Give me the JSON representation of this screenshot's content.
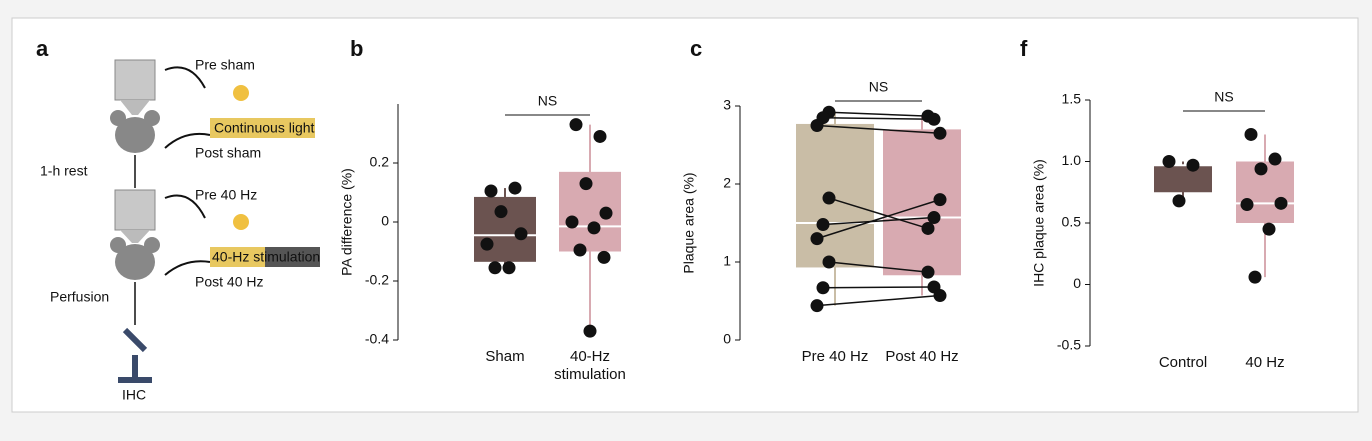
{
  "diagram": {
    "label": "a",
    "pre_sham": "Pre sham",
    "continuous": "Continuous light",
    "post_sham": "Post sham",
    "rest": "1-h rest",
    "pre_40": "Pre 40 Hz",
    "stim": "40-Hz stimulation",
    "post_40": "Post 40 Hz",
    "perfusion": "Perfusion",
    "ihc": "IHC"
  },
  "chart_data": [
    {
      "type": "box",
      "panel": "b",
      "ylabel": "PA difference (%)",
      "annotation": "NS",
      "categories": [
        "Sham",
        "40-Hz stimulation"
      ],
      "ylim": [
        -0.4,
        0.4
      ],
      "yticks": [
        -0.4,
        -0.2,
        0,
        0.2
      ],
      "boxes": [
        {
          "color": "#6b5350",
          "q1": -0.135,
          "median": -0.045,
          "q3": 0.085,
          "whisker_low": -0.155,
          "whisker_high": 0.115,
          "points": [
            0.105,
            0.115,
            0.035,
            -0.04,
            -0.075,
            -0.155,
            -0.155
          ]
        },
        {
          "color": "#d8aab1",
          "q1": -0.1,
          "median": -0.015,
          "q3": 0.17,
          "whisker_low": -0.37,
          "whisker_high": 0.33,
          "points": [
            0.33,
            0.29,
            0.13,
            0.03,
            0.0,
            -0.02,
            -0.095,
            -0.12,
            -0.37
          ]
        }
      ]
    },
    {
      "type": "paired-box",
      "panel": "c",
      "ylabel": "Plaque area (%)",
      "annotation": "NS",
      "categories": [
        "Pre 40 Hz",
        "Post 40 Hz"
      ],
      "ylim": [
        0,
        3
      ],
      "yticks": [
        0,
        1,
        2,
        3
      ],
      "boxes": [
        {
          "color": "#c9bda6",
          "q1": 0.93,
          "median": 1.5,
          "q3": 2.77,
          "whisker_low": 0.44,
          "whisker_high": 2.92,
          "points": [
            2.92,
            2.85,
            2.75,
            1.82,
            1.48,
            1.3,
            1.0,
            0.67,
            0.44
          ]
        },
        {
          "color": "#d8aab1",
          "q1": 0.83,
          "median": 1.57,
          "q3": 2.7,
          "whisker_low": 0.57,
          "whisker_high": 2.87,
          "points": [
            2.87,
            2.83,
            2.65,
            1.43,
            1.57,
            1.8,
            0.87,
            0.68,
            0.57
          ]
        }
      ]
    },
    {
      "type": "box",
      "panel": "f",
      "ylabel": "IHC plaque area (%)",
      "annotation": "NS",
      "categories": [
        "Control",
        "40 Hz"
      ],
      "ylim": [
        -0.5,
        1.5
      ],
      "yticks": [
        -0.5,
        0,
        0.5,
        {
          "value": 1,
          "label": "1.0"
        },
        1.5
      ],
      "boxes": [
        {
          "color": "#6b5350",
          "q1": 0.75,
          "median": 0.97,
          "q3": 0.97,
          "whisker_low": 0.68,
          "whisker_high": 1.0,
          "points": [
            1.0,
            0.97,
            0.68
          ]
        },
        {
          "color": "#d8aab1",
          "q1": 0.5,
          "median": 0.66,
          "q3": 1.0,
          "whisker_low": 0.06,
          "whisker_high": 1.22,
          "points": [
            1.22,
            1.02,
            0.94,
            0.66,
            0.65,
            0.45,
            0.06
          ]
        }
      ]
    }
  ]
}
